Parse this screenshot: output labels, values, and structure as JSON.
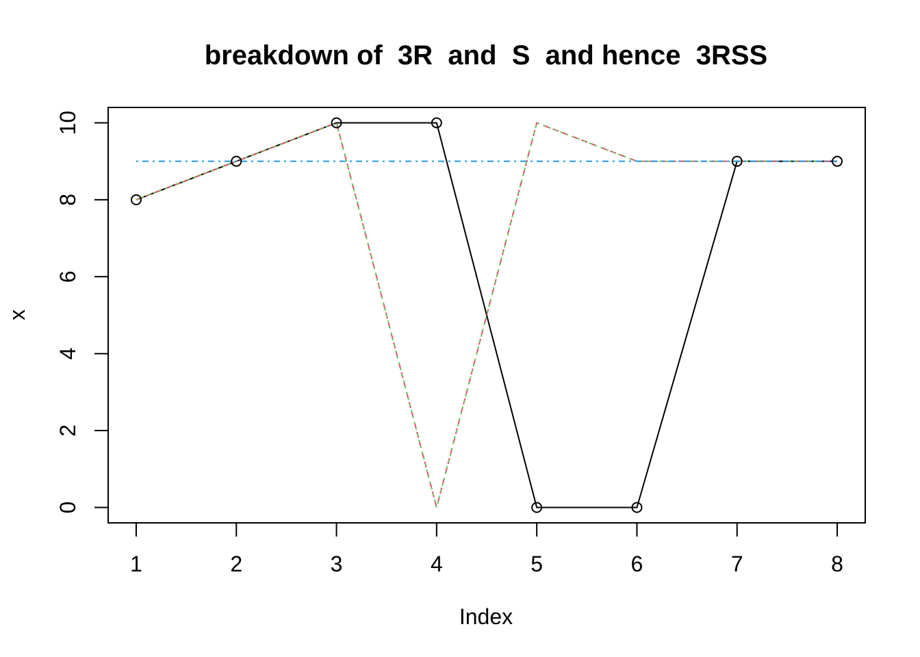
{
  "chart_data": {
    "type": "line",
    "title": "breakdown of  3R  and  S  and hence  3RSS",
    "xlabel": "Index",
    "ylabel": "x",
    "x": [
      1,
      2,
      3,
      4,
      5,
      6,
      7,
      8
    ],
    "xlim": [
      0.72,
      8.28
    ],
    "ylim": [
      -0.4,
      10.4
    ],
    "x_ticks": [
      1,
      2,
      3,
      4,
      5,
      6,
      7,
      8
    ],
    "y_ticks": [
      0,
      2,
      4,
      6,
      8,
      10
    ],
    "grid": false,
    "series": [
      {
        "values": [
          8,
          9,
          10,
          10,
          0,
          0,
          9,
          9
        ],
        "style": "solid",
        "markers": "open-circle",
        "color": "#000000"
      },
      {
        "values": [
          8,
          9,
          10,
          0,
          10,
          9,
          9,
          9
        ],
        "style": "dashed",
        "color": "#DF536B"
      },
      {
        "values": [
          8,
          9,
          10,
          0,
          10,
          9,
          9,
          9
        ],
        "style": "dotted",
        "color": "#61D04F"
      },
      {
        "values": [
          9,
          9,
          9,
          9,
          9,
          9,
          9,
          9
        ],
        "style": "dotdash",
        "color": "#2297E6"
      }
    ]
  }
}
